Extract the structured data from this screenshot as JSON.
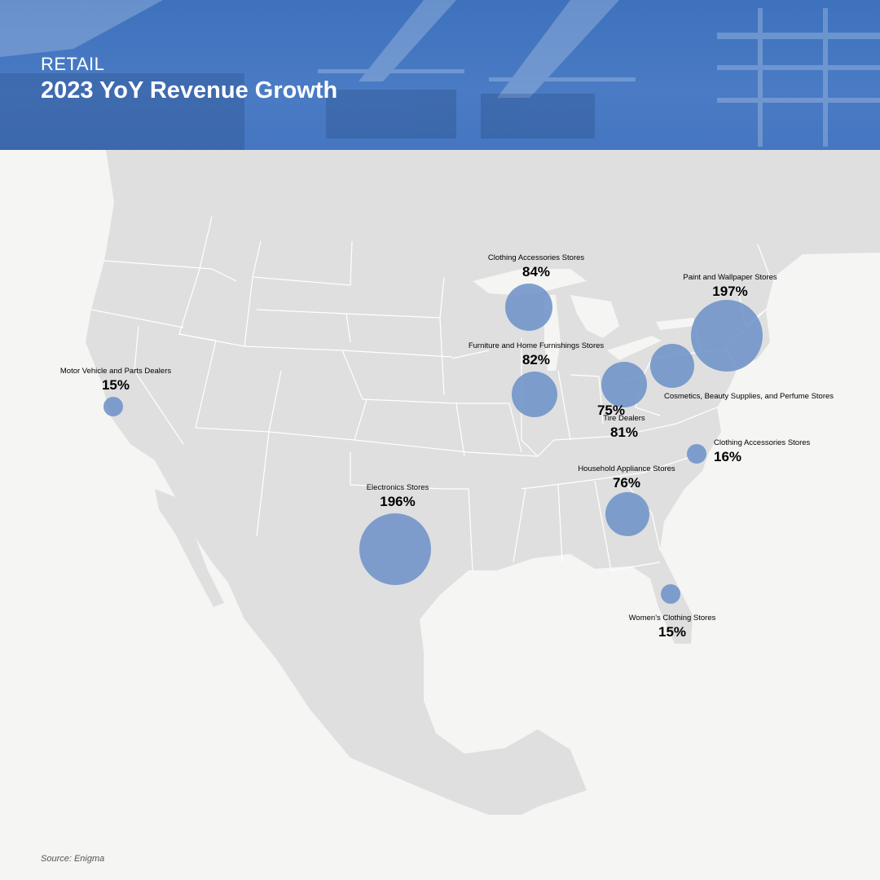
{
  "header": {
    "kicker": "RETAIL",
    "title": "2023 YoY Revenue Growth",
    "bg_color": "#4576c1"
  },
  "map": {
    "land_color": "#dfdfdf",
    "border_color": "#ffffff",
    "water_color": "#f5f5f4",
    "bubble_color": "#6f93c9"
  },
  "chart_data": {
    "type": "bubble-map",
    "unit": "%",
    "points": [
      {
        "label": "Clothing Accessories Stores",
        "value": 84,
        "value_text": "84%"
      },
      {
        "label": "Paint and Wallpaper Stores",
        "value": 197,
        "value_text": "197%"
      },
      {
        "label": "Furniture and Home Furnishings Stores",
        "value": 82,
        "value_text": "82%"
      },
      {
        "label": "Motor Vehicle and Parts Dealers",
        "value": 15,
        "value_text": "15%"
      },
      {
        "label": "Cosmetics, Beauty Supplies, and Perfume Stores",
        "value": 75,
        "value_text": "75%"
      },
      {
        "label": "Tire Dealers",
        "value": 81,
        "value_text": "81%"
      },
      {
        "label": "Clothing Accessories Stores",
        "value": 16,
        "value_text": "16%"
      },
      {
        "label": "Household Appliance Stores",
        "value": 76,
        "value_text": "76%"
      },
      {
        "label": "Electronics Stores",
        "value": 196,
        "value_text": "196%"
      },
      {
        "label": "Women's Clothing Stores",
        "value": 15,
        "value_text": "15%"
      }
    ]
  },
  "footer": {
    "source": "Source: Enigma"
  }
}
